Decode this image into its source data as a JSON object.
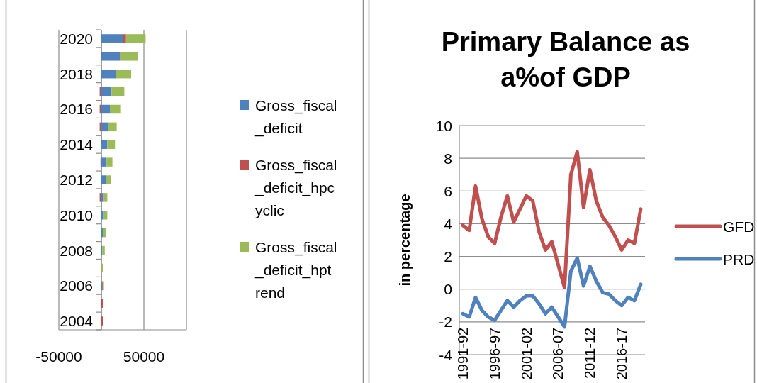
{
  "chart_data": [
    {
      "type": "bar",
      "orientation": "horizontal",
      "stacked": true,
      "categories": [
        "2020",
        null,
        "2018",
        null,
        "2016",
        null,
        "2014",
        null,
        "2012",
        null,
        "2010",
        null,
        "2008",
        null,
        "2006",
        null,
        "2004"
      ],
      "series": [
        {
          "name": "Gross_fiscal_deficit",
          "color": "#4f81bd",
          "values": [
            25000,
            22000,
            17000,
            12000,
            10000,
            8000,
            7000,
            6000,
            5000,
            3000,
            3000,
            2000,
            1000,
            0,
            1000,
            0,
            0
          ]
        },
        {
          "name": "Gross_fiscal_deficit_hpcyclic",
          "color": "#c0504d",
          "values": [
            4000,
            1000,
            null,
            -2000,
            -2000,
            -2000,
            0,
            -1000,
            0,
            -2000,
            0,
            0,
            0,
            0,
            1000,
            2000,
            2000
          ]
        },
        {
          "name": "Gross_fiscal_deficit_hptrend",
          "color": "#9bbb59",
          "values": [
            23000,
            20000,
            18000,
            15000,
            13000,
            10000,
            9000,
            7000,
            6000,
            4000,
            4000,
            3000,
            3000,
            2000,
            1000,
            0,
            0
          ]
        }
      ],
      "xlim": [
        -50000,
        100000
      ],
      "xticks": [
        -50000,
        {
          "value": 0,
          "label": null
        },
        50000,
        {
          "value": 100000,
          "label": null
        }
      ],
      "grid": "x",
      "legend": "right"
    },
    {
      "type": "line",
      "title": "Primary Balance as a%of GDP",
      "ylabel": "in percentage",
      "categories": [
        "1991-92",
        null,
        null,
        null,
        null,
        "1996-97",
        null,
        null,
        null,
        null,
        "2001-02",
        null,
        null,
        null,
        null,
        "2006-07",
        null,
        null,
        null,
        null,
        "2011-12",
        null,
        null,
        null,
        null,
        "2016-17",
        null,
        null,
        null
      ],
      "series": [
        {
          "name": "GFD",
          "color": "#c0504d",
          "values": [
            3.9,
            3.6,
            6.3,
            4.3,
            3.2,
            2.8,
            4.4,
            5.7,
            4.1,
            4.9,
            5.7,
            5.4,
            3.5,
            2.4,
            2.9,
            1.5,
            0.1,
            7.0,
            8.4,
            5.0,
            7.3,
            5.4,
            4.4,
            3.9,
            3.2,
            2.4,
            3.0,
            2.8,
            4.9
          ]
        },
        {
          "name": "PRD",
          "color": "#4f81bd",
          "values": [
            -1.5,
            -1.7,
            -0.5,
            -1.3,
            -1.7,
            -1.9,
            -1.3,
            -0.7,
            -1.1,
            -0.7,
            -0.4,
            -0.4,
            -0.9,
            -1.5,
            -1.1,
            -1.7,
            -2.3,
            1.1,
            1.9,
            0.2,
            1.4,
            0.5,
            -0.2,
            -0.3,
            -0.7,
            -1.0,
            -0.5,
            -0.7,
            0.3
          ]
        }
      ],
      "ylim": [
        -4,
        10
      ],
      "yticks": [
        -4,
        -2,
        0,
        2,
        4,
        6,
        8,
        10
      ],
      "grid": "y",
      "legend": "right",
      "marker": "none",
      "line_style": "solid"
    }
  ]
}
